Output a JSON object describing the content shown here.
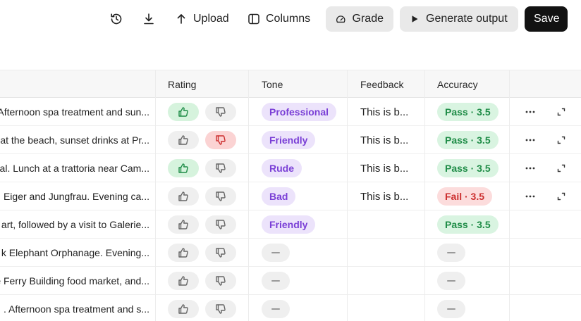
{
  "toolbar": {
    "history_icon": "history-icon",
    "download_icon": "download-icon",
    "upload_label": "Upload",
    "columns_label": "Columns",
    "grade_label": "Grade",
    "generate_label": "Generate output",
    "save_label": "Save"
  },
  "table": {
    "columns": [
      "Rating",
      "Tone",
      "Feedback",
      "Accuracy"
    ],
    "rows": [
      {
        "prompt": "Afternoon spa treatment and sun...",
        "rating": "up",
        "tone": "Professional",
        "feedback": "This is b...",
        "accuracy": "Pass · 3.5",
        "accuracy_status": "pass",
        "actions": true
      },
      {
        "prompt": "at the beach, sunset drinks at Pr...",
        "rating": "down",
        "tone": "Friendly",
        "feedback": "This is b...",
        "accuracy": "Pass · 3.5",
        "accuracy_status": "pass",
        "actions": true
      },
      {
        "prompt": "al. Lunch at a trattoria near Cam...",
        "rating": "up",
        "tone": "Rude",
        "feedback": "This is b...",
        "accuracy": "Pass · 3.5",
        "accuracy_status": "pass",
        "actions": true
      },
      {
        "prompt": "Eiger and Jungfrau. Evening ca...",
        "rating": "none",
        "tone": "Bad",
        "feedback": "This is b...",
        "accuracy": "Fail · 3.5",
        "accuracy_status": "fail",
        "actions": true
      },
      {
        "prompt": "art, followed by a visit to Galerie...",
        "rating": "none",
        "tone": "Friendly",
        "feedback": "",
        "accuracy": "Pass · 3.5",
        "accuracy_status": "pass",
        "actions": false
      },
      {
        "prompt": "k Elephant Orphanage. Evening...",
        "rating": "none",
        "tone": "",
        "feedback": "",
        "accuracy": "",
        "accuracy_status": "empty",
        "actions": false
      },
      {
        "prompt": "e Ferry Building food market, and...",
        "rating": "none",
        "tone": "",
        "feedback": "",
        "accuracy": "",
        "accuracy_status": "empty",
        "actions": false
      },
      {
        "prompt": ". Afternoon spa treatment and s...",
        "rating": "none",
        "tone": "",
        "feedback": "",
        "accuracy": "",
        "accuracy_status": "empty",
        "actions": false
      }
    ]
  },
  "colors": {
    "thumb_up_active": "#d6f3dd",
    "thumb_down_active": "#fbd3d3",
    "tone_tag": "#ece3fb",
    "pass_tag": "#d9f4e1",
    "fail_tag": "#fcdcdc"
  }
}
